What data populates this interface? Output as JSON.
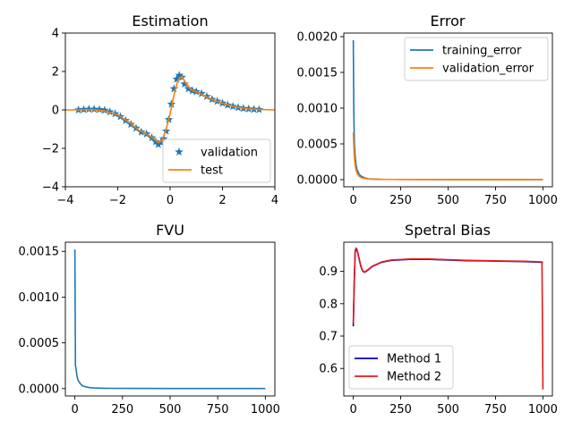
{
  "figure": {
    "background": "#ffffff"
  },
  "chart_data": [
    {
      "id": "estimation",
      "type": "scatter",
      "title": "Estimation",
      "xlabel": "",
      "ylabel": "",
      "xlim": [
        -4,
        4
      ],
      "ylim": [
        -4,
        4
      ],
      "xticks": [
        -4,
        -2,
        0,
        2,
        4
      ],
      "yticks": [
        -4,
        -2,
        0,
        2,
        4
      ],
      "xtick_labels": [
        "−4",
        "−2",
        "0",
        "2",
        "4"
      ],
      "ytick_labels": [
        "−4",
        "−2",
        "0",
        "2",
        "4"
      ],
      "grid": false,
      "legend_position": "lower right",
      "series": [
        {
          "name": "validation",
          "kind": "scatter",
          "marker": "star",
          "color": "#1f77b4",
          "x": [
            -3.5,
            -3.3,
            -3.1,
            -2.9,
            -2.7,
            -2.5,
            -2.3,
            -2.1,
            -1.9,
            -1.7,
            -1.5,
            -1.3,
            -1.1,
            -0.9,
            -0.7,
            -0.55,
            -0.45,
            -0.35,
            -0.25,
            -0.15,
            -0.05,
            0.05,
            0.15,
            0.25,
            0.35,
            0.45,
            0.55,
            0.7,
            0.85,
            1.0,
            1.2,
            1.4,
            1.6,
            1.8,
            2.0,
            2.2,
            2.4,
            2.6,
            2.8,
            3.0,
            3.2,
            3.4
          ],
          "y": [
            0.0,
            0.02,
            0.04,
            0.04,
            0.02,
            -0.02,
            -0.1,
            -0.2,
            -0.35,
            -0.55,
            -0.75,
            -0.95,
            -1.15,
            -1.25,
            -1.45,
            -1.65,
            -1.8,
            -1.7,
            -1.5,
            -1.1,
            -0.5,
            0.3,
            1.1,
            1.6,
            1.8,
            1.7,
            1.35,
            1.1,
            1.0,
            0.95,
            0.85,
            0.7,
            0.55,
            0.45,
            0.35,
            0.25,
            0.18,
            0.12,
            0.08,
            0.05,
            0.03,
            0.02
          ]
        },
        {
          "name": "test",
          "kind": "line",
          "color": "#ff7f0e",
          "x": [
            -4,
            -3.5,
            -3.0,
            -2.5,
            -2.0,
            -1.5,
            -1.2,
            -0.9,
            -0.6,
            -0.45,
            -0.3,
            -0.15,
            0.0,
            0.15,
            0.3,
            0.45,
            0.6,
            0.8,
            1.0,
            1.3,
            1.6,
            2.0,
            2.5,
            3.0,
            3.5,
            4.0
          ],
          "y": [
            0.0,
            0.0,
            0.02,
            -0.05,
            -0.25,
            -0.7,
            -1.05,
            -1.25,
            -1.5,
            -1.7,
            -1.6,
            -1.0,
            -0.2,
            0.8,
            1.55,
            1.75,
            1.4,
            1.05,
            0.95,
            0.75,
            0.55,
            0.35,
            0.15,
            0.05,
            0.02,
            0.0
          ]
        }
      ]
    },
    {
      "id": "error",
      "type": "line",
      "title": "Error",
      "xlabel": "",
      "ylabel": "",
      "xlim": [
        -50,
        1050
      ],
      "ylim": [
        -0.0001,
        0.00205
      ],
      "xticks": [
        0,
        250,
        500,
        750,
        1000
      ],
      "yticks": [
        0,
        0.0005,
        0.001,
        0.0015,
        0.002
      ],
      "xtick_labels": [
        "0",
        "250",
        "500",
        "750",
        "1000"
      ],
      "ytick_labels": [
        "0.0000",
        "0.0005",
        "0.0010",
        "0.0015",
        "0.0020"
      ],
      "grid": false,
      "legend_position": "upper right",
      "series": [
        {
          "name": "training_error",
          "color": "#1f77b4",
          "x": [
            0,
            3,
            6,
            10,
            15,
            20,
            30,
            40,
            60,
            80,
            100,
            150,
            200,
            300,
            500,
            750,
            1000
          ],
          "y": [
            0.00195,
            0.0009,
            0.0005,
            0.00032,
            0.0002,
            0.00014,
            8e-05,
            5e-05,
            2.5e-05,
            1.2e-05,
            8e-06,
            4e-06,
            3e-06,
            2e-06,
            1e-06,
            1e-06,
            1e-06
          ]
        },
        {
          "name": "validation_error",
          "color": "#ff7f0e",
          "x": [
            0,
            3,
            6,
            10,
            15,
            20,
            30,
            40,
            60,
            80,
            100,
            150,
            200,
            300,
            500,
            750,
            1000
          ],
          "y": [
            0.00066,
            0.00045,
            0.0003,
            0.0002,
            0.00013,
            9e-05,
            5e-05,
            3e-05,
            1.5e-05,
            1e-05,
            7e-06,
            4e-06,
            3e-06,
            2e-06,
            1e-06,
            1e-06,
            1e-06
          ]
        }
      ]
    },
    {
      "id": "fvu",
      "type": "line",
      "title": "FVU",
      "xlabel": "",
      "ylabel": "",
      "xlim": [
        -50,
        1050
      ],
      "ylim": [
        -8e-05,
        0.0016
      ],
      "xticks": [
        0,
        250,
        500,
        750,
        1000
      ],
      "yticks": [
        0,
        0.0005,
        0.001,
        0.0015
      ],
      "xtick_labels": [
        "0",
        "250",
        "500",
        "750",
        "1000"
      ],
      "ytick_labels": [
        "0.0000",
        "0.0005",
        "0.0010",
        "0.0015"
      ],
      "grid": false,
      "legend_position": "none",
      "series": [
        {
          "name": "",
          "color": "#1f77b4",
          "x": [
            0,
            3,
            6,
            10,
            15,
            20,
            30,
            40,
            60,
            80,
            100,
            150,
            200,
            300,
            500,
            750,
            1000
          ],
          "y": [
            0.00152,
            0.00025,
            0.00022,
            0.00015,
            0.0001,
            8e-05,
            5e-05,
            3e-05,
            1.8e-05,
            1e-05,
            7e-06,
            4e-06,
            3e-06,
            2e-06,
            1e-06,
            1e-06,
            1e-06
          ]
        }
      ]
    },
    {
      "id": "spectral-bias",
      "type": "line",
      "title": "Spetral Bias",
      "xlabel": "",
      "ylabel": "",
      "xlim": [
        -50,
        1050
      ],
      "ylim": [
        0.515,
        0.99
      ],
      "xticks": [
        0,
        250,
        500,
        750,
        1000
      ],
      "yticks": [
        0.6,
        0.7,
        0.8,
        0.9
      ],
      "xtick_labels": [
        "0",
        "250",
        "500",
        "750",
        "1000"
      ],
      "ytick_labels": [
        "0.6",
        "0.7",
        "0.8",
        "0.9"
      ],
      "grid": false,
      "legend_position": "lower left",
      "series": [
        {
          "name": "Method 1",
          "color": "#0000cc",
          "x": [
            0,
            5,
            10,
            15,
            20,
            30,
            40,
            50,
            60,
            80,
            100,
            150,
            200,
            300,
            400,
            500,
            600,
            700,
            800,
            900,
            995,
            1000
          ],
          "y": [
            0.73,
            0.86,
            0.96,
            0.97,
            0.965,
            0.94,
            0.915,
            0.9,
            0.897,
            0.905,
            0.915,
            0.928,
            0.934,
            0.937,
            0.937,
            0.935,
            0.933,
            0.932,
            0.931,
            0.93,
            0.928,
            0.928
          ]
        },
        {
          "name": "Method 2",
          "color": "#e41a1c",
          "x": [
            0,
            5,
            10,
            15,
            20,
            30,
            40,
            50,
            60,
            80,
            100,
            150,
            200,
            300,
            400,
            500,
            600,
            700,
            800,
            900,
            995,
            998,
            1000
          ],
          "y": [
            0.74,
            0.87,
            0.965,
            0.972,
            0.967,
            0.942,
            0.917,
            0.901,
            0.898,
            0.906,
            0.916,
            0.929,
            0.935,
            0.938,
            0.938,
            0.936,
            0.934,
            0.933,
            0.932,
            0.931,
            0.929,
            0.7,
            0.535
          ]
        }
      ]
    }
  ]
}
